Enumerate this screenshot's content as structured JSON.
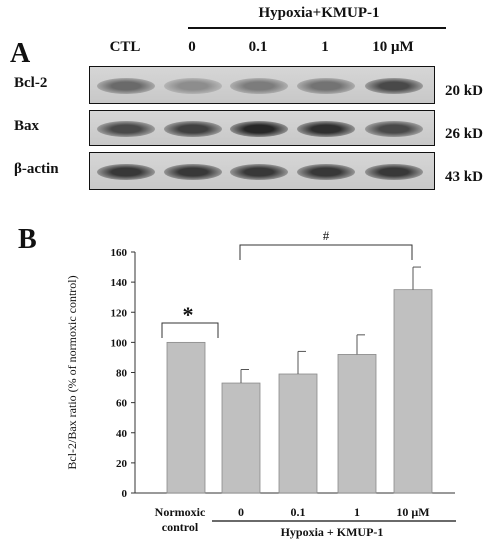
{
  "panel_a": {
    "letter": "A",
    "group_label": "Hypoxia+KMUP-1",
    "lanes": [
      "CTL",
      "0",
      "0.1",
      "1",
      "10 μM"
    ],
    "rows": [
      {
        "name": "Bcl-2",
        "kd": "20 kD",
        "band_darkness": [
          0.55,
          0.35,
          0.45,
          0.5,
          0.75
        ]
      },
      {
        "name": "Bax",
        "kd": "26 kD",
        "band_darkness": [
          0.75,
          0.8,
          0.95,
          0.9,
          0.75
        ]
      },
      {
        "name": "β-actin",
        "kd": "43 kD",
        "band_darkness": [
          0.85,
          0.85,
          0.85,
          0.85,
          0.85
        ]
      }
    ]
  },
  "panel_b": {
    "letter": "B",
    "significance": {
      "star": "*",
      "hash": "#"
    },
    "group_label": "Hypoxia + KMUP-1"
  },
  "chart_data": {
    "type": "bar",
    "categories": [
      "Normoxic control",
      "0",
      "0.1",
      "1",
      "10 μM"
    ],
    "category_lines": [
      [
        "Normoxic",
        "control"
      ],
      [
        "0"
      ],
      [
        "0.1"
      ],
      [
        "1"
      ],
      [
        "10 μM"
      ]
    ],
    "values": [
      100,
      73,
      79,
      92,
      135
    ],
    "errors": [
      0,
      9,
      15,
      13,
      15
    ],
    "ylabel": "Bcl-2/Bax ratio (% of normoxic control)",
    "ylim": [
      0,
      160
    ],
    "yticks": [
      0,
      20,
      40,
      60,
      80,
      100,
      120,
      140,
      160
    ],
    "bar_color": "#c0c0c0",
    "grid": false
  }
}
